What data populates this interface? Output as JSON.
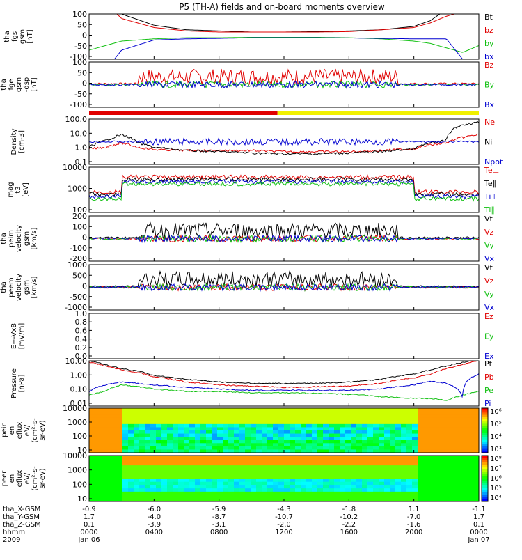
{
  "title": "P5 (TH-A) fields and on-board moments overview",
  "colors": {
    "black": "#000000",
    "red": "#e00000",
    "green": "#10c010",
    "blue": "#0000d0",
    "yellow": "#f0f000",
    "spec_bg": "#ff8800"
  },
  "panels": [
    {
      "id": "fgs",
      "ylabel": [
        "tha",
        "fgs",
        "gsm",
        "[nT]"
      ],
      "ticks": [
        "100",
        "50",
        "0",
        "-50",
        "-100"
      ],
      "legend": [
        {
          "t": "Bt",
          "c": "black"
        },
        {
          "t": "bz",
          "c": "red"
        },
        {
          "t": "by",
          "c": "green"
        },
        {
          "t": "bx",
          "c": "blue"
        }
      ]
    },
    {
      "id": "fge",
      "ylabel": [
        "tha",
        "fge",
        "gsm",
        "-dsp",
        "[nT]"
      ],
      "ticks": [
        "100",
        "50",
        "0",
        "-50",
        "-100"
      ],
      "legend": [
        {
          "t": "Bz",
          "c": "red"
        },
        {
          "t": "By",
          "c": "green"
        },
        {
          "t": "Bx",
          "c": "blue"
        }
      ]
    },
    {
      "id": "density",
      "ylabel": [
        "Density",
        "[cm-3]"
      ],
      "ticks": [
        "100.0",
        "10.0",
        "1.0",
        "0.1"
      ],
      "legend": [
        {
          "t": "Ne",
          "c": "red"
        },
        {
          "t": "Ni",
          "c": "black"
        },
        {
          "t": "Npot",
          "c": "blue"
        }
      ]
    },
    {
      "id": "temp",
      "ylabel": [
        "mag",
        "t3",
        "[eV]"
      ],
      "ticks": [
        "10000",
        "1000",
        "100"
      ],
      "legend": [
        {
          "t": "Te⊥",
          "c": "red"
        },
        {
          "t": "Te∥",
          "c": "black"
        },
        {
          "t": "Ti⊥",
          "c": "blue"
        },
        {
          "t": "Ti∥",
          "c": "green"
        }
      ]
    },
    {
      "id": "vi",
      "ylabel": [
        "tha",
        "peim",
        "velocity",
        "gsm",
        "[km/s]"
      ],
      "ticks": [
        "200",
        "100",
        "0",
        "-100",
        "-200"
      ],
      "legend": [
        {
          "t": "Vt",
          "c": "black"
        },
        {
          "t": "Vz",
          "c": "red"
        },
        {
          "t": "Vy",
          "c": "green"
        },
        {
          "t": "Vx",
          "c": "blue"
        }
      ]
    },
    {
      "id": "ve",
      "ylabel": [
        "tha",
        "peem",
        "velocity",
        "gsm",
        "[km/s]"
      ],
      "ticks": [
        "1000",
        "500",
        "0",
        "-500",
        "-1000"
      ],
      "legend": [
        {
          "t": "Vt",
          "c": "black"
        },
        {
          "t": "Vz",
          "c": "red"
        },
        {
          "t": "Vy",
          "c": "green"
        },
        {
          "t": "Vx",
          "c": "blue"
        }
      ]
    },
    {
      "id": "efield",
      "ylabel": [
        "E=-VxB",
        "[mV/m]"
      ],
      "ticks": [
        "1.0",
        "0.8",
        "0.6",
        "0.4",
        "0.2",
        "0.0"
      ],
      "legend": [
        {
          "t": "Ez",
          "c": "red"
        },
        {
          "t": "Ey",
          "c": "green"
        },
        {
          "t": "Ex",
          "c": "blue"
        }
      ]
    },
    {
      "id": "pressure",
      "ylabel": [
        "Pressure",
        "[nPa]"
      ],
      "ticks": [
        "10.00",
        "1.00",
        "0.10",
        "0.01"
      ],
      "legend": [
        {
          "t": "Pt",
          "c": "black"
        },
        {
          "t": "Pb",
          "c": "red"
        },
        {
          "t": "Pe",
          "c": "green"
        },
        {
          "t": "Pi",
          "c": "blue"
        }
      ]
    },
    {
      "id": "spec_i",
      "ylabel": [
        "tha",
        "peir",
        "en",
        "eflux",
        "eV/",
        "(cm²-s-",
        "sr-eV)"
      ],
      "ticks": [
        "10000",
        "1000",
        "100",
        "10"
      ],
      "cbar": [
        "10⁶",
        "10⁵",
        "10⁴",
        "10³"
      ]
    },
    {
      "id": "spec_e",
      "ylabel": [
        "tha",
        "peer",
        "en",
        "eflux",
        "eV/",
        "(cm²-s-",
        "sr-eV)"
      ],
      "ticks": [
        "10000",
        "1000",
        "100",
        "10"
      ],
      "cbar": [
        "10⁸",
        "10⁷",
        "10⁶",
        "10⁵",
        "10⁴"
      ]
    }
  ],
  "ephemeris": {
    "rows": [
      {
        "label": "tha_X-GSM",
        "values": [
          "-0.9",
          "-6.0",
          "-5.9",
          "-4.3",
          "-1.8",
          "1.1",
          "-1.1"
        ]
      },
      {
        "label": "tha_Y-GSM",
        "values": [
          "1.7",
          "-4.0",
          "-8.7",
          "-10.7",
          "-10.2",
          "-7.0",
          "1.7"
        ]
      },
      {
        "label": "tha_Z-GSM",
        "values": [
          "0.1",
          "-3.9",
          "-3.1",
          "-2.0",
          "-2.2",
          "-1.6",
          "0.1"
        ]
      },
      {
        "label": "hhmm",
        "values": [
          "0000",
          "0400",
          "0800",
          "1200",
          "1600",
          "2000",
          "0000"
        ]
      },
      {
        "label": "2009",
        "values": [
          "Jan 06",
          "",
          "",
          "",
          "",
          "",
          "Jan 07"
        ]
      }
    ]
  },
  "chart_data": {
    "type": "line",
    "title": "P5 (TH-A) fields and on-board moments overview",
    "x_range_hours": [
      0,
      24
    ],
    "x_ticks": [
      "0000",
      "0400",
      "0800",
      "1200",
      "1600",
      "2000",
      "0000"
    ],
    "series": [
      {
        "name": "Bt",
        "panel": "fgs",
        "x": [
          0,
          1,
          2,
          4,
          6,
          8,
          10,
          12,
          14,
          16,
          18,
          20,
          21,
          22,
          23,
          24
        ],
        "values": [
          250,
          200,
          100,
          50,
          30,
          25,
          20,
          20,
          22,
          25,
          30,
          45,
          70,
          120,
          180,
          250
        ]
      },
      {
        "name": "bz",
        "panel": "fgs",
        "x": [
          0,
          1,
          2,
          4,
          6,
          8,
          10,
          12,
          14,
          16,
          18,
          20,
          21,
          22,
          23,
          24
        ],
        "values": [
          200,
          150,
          80,
          40,
          25,
          20,
          20,
          20,
          20,
          22,
          30,
          40,
          60,
          90,
          110,
          120
        ]
      },
      {
        "name": "by",
        "panel": "fgs",
        "x": [
          0,
          1,
          2,
          4,
          6,
          8,
          10,
          12,
          14,
          16,
          18,
          20,
          21,
          22,
          23,
          24
        ],
        "values": [
          -60,
          -40,
          -20,
          -10,
          -5,
          -5,
          -3,
          -3,
          -3,
          -5,
          -10,
          -20,
          -30,
          -50,
          -70,
          -40
        ]
      },
      {
        "name": "bx",
        "panel": "fgs",
        "x": [
          0,
          1,
          2,
          4,
          6,
          8,
          10,
          12,
          14,
          16,
          18,
          20,
          21,
          22,
          23,
          24
        ],
        "values": [
          -200,
          -150,
          -60,
          -15,
          -10,
          -8,
          -5,
          -5,
          -5,
          -6,
          -8,
          -10,
          -10,
          -10,
          -100,
          -200
        ]
      },
      {
        "name": "Ni",
        "panel": "density",
        "x": [
          0,
          1,
          1.5,
          2,
          3,
          4,
          6,
          8,
          10,
          12,
          14,
          16,
          18,
          20,
          21,
          22,
          23,
          24
        ],
        "values": [
          1,
          3,
          5,
          8,
          2,
          1,
          0.6,
          0.5,
          0.4,
          0.35,
          0.35,
          0.4,
          0.5,
          0.8,
          2,
          3,
          40,
          60
        ]
      },
      {
        "name": "Ne",
        "panel": "density",
        "x": [
          0,
          1,
          2,
          3,
          4,
          6,
          8,
          10,
          12,
          14,
          16,
          18,
          20,
          21,
          22,
          23,
          24
        ],
        "values": [
          0.8,
          1,
          2,
          1,
          0.7,
          0.6,
          0.6,
          0.6,
          0.5,
          0.5,
          0.5,
          0.6,
          0.8,
          1.5,
          2,
          5,
          8
        ]
      },
      {
        "name": "Pt",
        "panel": "pressure",
        "x": [
          0,
          1,
          2,
          4,
          6,
          8,
          10,
          12,
          14,
          16,
          18,
          20,
          21,
          22,
          23,
          24
        ],
        "values": [
          20,
          10,
          5,
          1.5,
          0.8,
          0.5,
          0.4,
          0.4,
          0.4,
          0.5,
          0.8,
          2,
          4,
          8,
          15,
          25
        ]
      },
      {
        "name": "Pb",
        "panel": "pressure",
        "x": [
          0,
          1,
          2,
          4,
          6,
          8,
          10,
          12,
          14,
          16,
          18,
          20,
          21,
          22,
          23,
          24
        ],
        "values": [
          15,
          8,
          4,
          1.2,
          0.5,
          0.3,
          0.25,
          0.2,
          0.22,
          0.25,
          0.4,
          1,
          2,
          5,
          10,
          20
        ]
      },
      {
        "name": "Pe",
        "panel": "pressure",
        "x": [
          0,
          1,
          2,
          4,
          6,
          8,
          10,
          12,
          14,
          16,
          18,
          20,
          21,
          22,
          23,
          24
        ],
        "values": [
          0.05,
          0.1,
          0.3,
          0.15,
          0.1,
          0.1,
          0.08,
          0.08,
          0.07,
          0.06,
          0.04,
          0.03,
          0.03,
          0.02,
          0.05,
          0.1
        ]
      },
      {
        "name": "Pi",
        "panel": "pressure",
        "x": [
          0,
          1,
          2,
          4,
          6,
          8,
          10,
          12,
          14,
          16,
          18,
          20,
          21,
          22,
          23,
          24
        ],
        "values": [
          0.1,
          0.3,
          0.5,
          0.3,
          0.2,
          0.15,
          0.12,
          0.12,
          0.12,
          0.12,
          0.15,
          0.3,
          0.6,
          0.4,
          0.03,
          2
        ]
      }
    ]
  }
}
